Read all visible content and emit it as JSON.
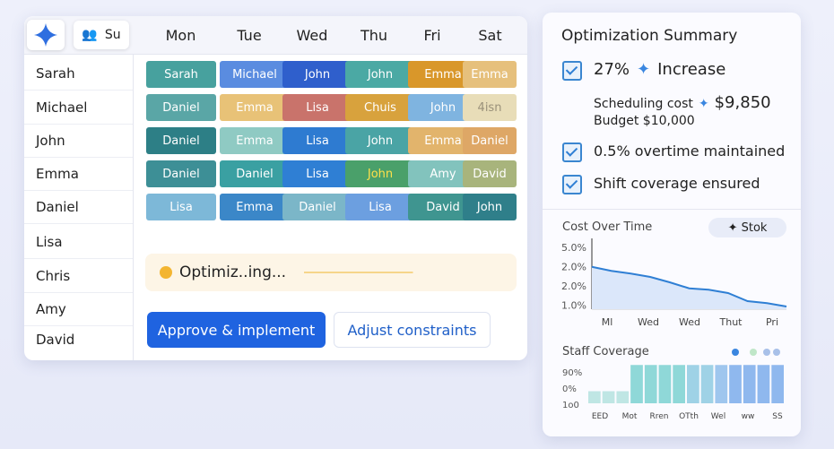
{
  "header": {
    "tab": "Su",
    "days": [
      "Mon",
      "Tue",
      "Wed",
      "Thu",
      "Fri",
      "Sat"
    ]
  },
  "staff": [
    "Sarah",
    "Michael",
    "John",
    "Emma",
    "Daniel",
    "Lisa",
    "Chris",
    "Amy",
    "David"
  ],
  "schedule": {
    "rows": [
      [
        {
          "name": "Sarah",
          "color": "#47a19e"
        },
        {
          "name": "Michael",
          "color": "#5a8ce0"
        },
        {
          "name": "John",
          "color": "#2f5fcc"
        },
        {
          "name": "John",
          "color": "#4ba9a4"
        },
        {
          "name": "Emma",
          "color": "#d9972a"
        },
        {
          "name": "Emma",
          "color": "#e6c07c"
        }
      ],
      [
        {
          "name": "Daniel",
          "color": "#5aa6a6"
        },
        {
          "name": "Emma",
          "color": "#e8c277"
        },
        {
          "name": "Lisa",
          "color": "#c9736b"
        },
        {
          "name": "Chuis",
          "color": "#d8a23d"
        },
        {
          "name": "John",
          "color": "#7fb4e0"
        },
        {
          "name": "4isn",
          "color": "#e8ddb8"
        }
      ],
      [
        {
          "name": "Daniel",
          "color": "#2d7f86"
        },
        {
          "name": "Emma",
          "color": "#8fcac3"
        },
        {
          "name": "Lisa",
          "color": "#2e7bd1"
        },
        {
          "name": "John",
          "color": "#4aa4a5"
        },
        {
          "name": "Emma",
          "color": "#e2b46c"
        },
        {
          "name": "Daniel",
          "color": "#dea766"
        }
      ],
      [
        {
          "name": "Daniel",
          "color": "#3d8f96"
        },
        {
          "name": "Daniel",
          "color": "#3aa0a2"
        },
        {
          "name": "Lisa",
          "color": "#2f7fd4"
        },
        {
          "name": "John",
          "color": "#4aa06a"
        },
        {
          "name": "Amy",
          "color": "#82c3bd"
        },
        {
          "name": "David",
          "color": "#a8b47c"
        }
      ],
      [
        {
          "name": "Lisa",
          "color": "#7db8d8"
        },
        {
          "name": "Emma",
          "color": "#3b87c8"
        },
        {
          "name": "Daniel",
          "color": "#7bb6c8"
        },
        {
          "name": "Lisa",
          "color": "#6c9fe0"
        },
        {
          "name": "David",
          "color": "#3f9590"
        },
        {
          "name": "John",
          "color": "#2f7f8a"
        }
      ]
    ]
  },
  "status": "Optimiz..ing...",
  "buttons": {
    "approve": "Approve & implement",
    "adjust": "Adjust constraints"
  },
  "summary": {
    "title": "Optimization Summary",
    "increase_value": "27%",
    "increase_label": "Increase",
    "cost_label": "Scheduling cost",
    "cost": "$9,850",
    "budget": "Budget $10,000",
    "overtime": "0.5% overtime maintained",
    "coverage": "Shift coverage ensured"
  },
  "cost_chart": {
    "title": "Cost Over Time",
    "badge": "Stok",
    "ytick_labels": [
      "5.0%",
      "2.0%",
      "2.0%",
      "1.0%"
    ],
    "categories": [
      "Ml",
      "Wed",
      "Wed",
      "Thut",
      "Pri"
    ],
    "ylim": [
      0,
      100
    ],
    "values": [
      63,
      57,
      53,
      48,
      40,
      31,
      29,
      24,
      12,
      9,
      4
    ],
    "color": "#2f7fd4"
  },
  "coverage_chart": {
    "title": "Staff Coverage",
    "ytick_labels": [
      "90%",
      "0%",
      "1o0"
    ],
    "categories": [
      "EED",
      "Mot",
      "Rren",
      "OTth",
      "Wel",
      "ww",
      "SS"
    ],
    "ylim": [
      0,
      100
    ],
    "values": [
      30,
      30,
      30,
      95,
      95,
      95,
      95,
      95,
      95,
      95,
      95,
      95,
      95,
      95
    ],
    "colors": [
      "#bfe6e4",
      "#bfe6e4",
      "#bfe6e4",
      "#8fd8d8",
      "#8fd8d8",
      "#8fd8d8",
      "#8fd8d8",
      "#9fd2e6",
      "#9fd2e6",
      "#9fc6ee",
      "#8fb8ee",
      "#8fb8ee",
      "#8fb8ee",
      "#8fb8ee"
    ]
  }
}
